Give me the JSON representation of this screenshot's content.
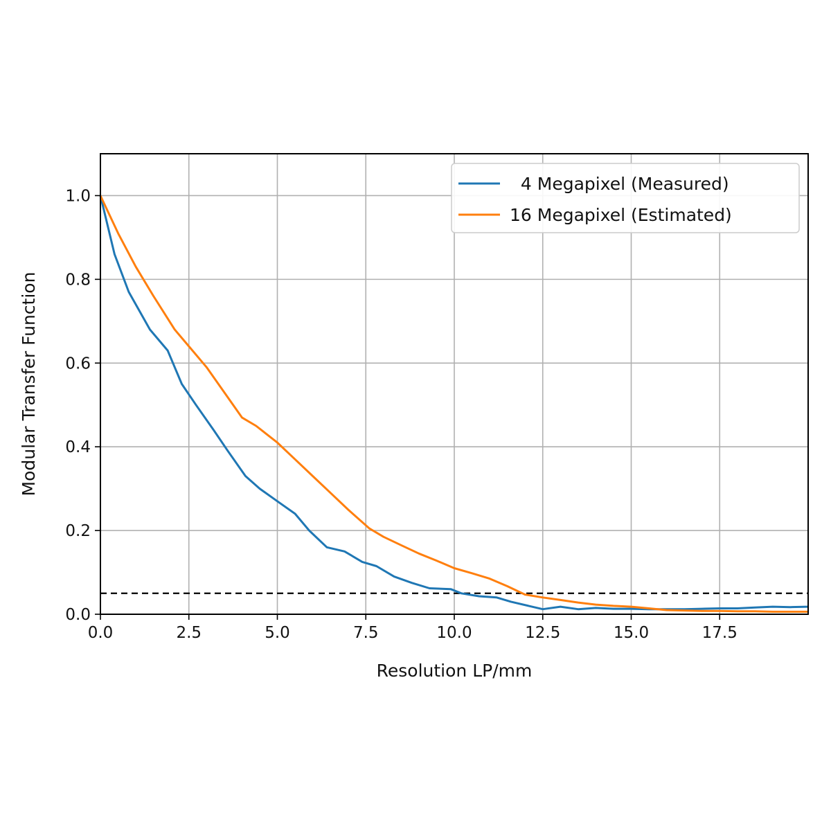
{
  "chart_data": {
    "type": "line",
    "title": "",
    "xlabel": "Resolution LP/mm",
    "ylabel": "Modular Transfer Function",
    "xlim": [
      0,
      20
    ],
    "ylim": [
      0,
      1.1
    ],
    "grid": true,
    "legend_position": "top-right",
    "x_ticks": [
      0,
      2.5,
      5.0,
      7.5,
      10.0,
      12.5,
      15.0,
      17.5
    ],
    "x_tick_labels": [
      "0.0",
      "2.5",
      "5.0",
      "7.5",
      "10.0",
      "12.5",
      "15.0",
      "17.5"
    ],
    "y_ticks": [
      0.0,
      0.2,
      0.4,
      0.6,
      0.8,
      1.0
    ],
    "y_tick_labels": [
      "0.0",
      "0.2",
      "0.4",
      "0.6",
      "0.8",
      "1.0"
    ],
    "reference_line": {
      "y": 0.05,
      "style": "dashed",
      "color": "#000000"
    },
    "series": [
      {
        "name": "  4 Megapixel (Measured)",
        "color": "#1f77b4",
        "x": [
          0,
          0.4,
          0.8,
          1.4,
          1.9,
          2.3,
          2.7,
          3.2,
          3.6,
          4.1,
          4.5,
          5.0,
          5.5,
          5.9,
          6.4,
          6.9,
          7.4,
          7.8,
          8.3,
          8.8,
          9.3,
          9.9,
          10.2,
          10.7,
          11.2,
          11.6,
          12.1,
          12.5,
          13.0,
          13.5,
          14.0,
          14.5,
          15.0,
          15.5,
          16.0,
          16.5,
          17.0,
          17.5,
          18.0,
          18.5,
          19.0,
          19.5,
          20.0
        ],
        "y": [
          1.0,
          0.86,
          0.77,
          0.68,
          0.63,
          0.55,
          0.5,
          0.44,
          0.39,
          0.33,
          0.3,
          0.27,
          0.24,
          0.2,
          0.16,
          0.15,
          0.125,
          0.115,
          0.09,
          0.075,
          0.062,
          0.06,
          0.05,
          0.043,
          0.04,
          0.03,
          0.02,
          0.012,
          0.018,
          0.012,
          0.015,
          0.013,
          0.013,
          0.012,
          0.012,
          0.012,
          0.013,
          0.014,
          0.014,
          0.016,
          0.018,
          0.017,
          0.018
        ]
      },
      {
        "name": "16 Megapixel (Estimated)",
        "color": "#ff7f0e",
        "x": [
          0,
          0.5,
          1.0,
          1.5,
          2.1,
          2.5,
          3.0,
          3.5,
          4.0,
          4.4,
          5.0,
          5.5,
          6.0,
          6.5,
          7.0,
          7.6,
          8.0,
          8.5,
          9.0,
          9.5,
          10.0,
          10.5,
          11.0,
          11.5,
          12.0,
          12.5,
          13.0,
          13.5,
          14.0,
          14.5,
          15.0,
          15.5,
          16.0,
          16.5,
          17.0,
          17.5,
          18.0,
          18.5,
          19.0,
          19.5,
          20.0
        ],
        "y": [
          1.0,
          0.91,
          0.83,
          0.76,
          0.68,
          0.64,
          0.59,
          0.53,
          0.47,
          0.45,
          0.41,
          0.37,
          0.33,
          0.29,
          0.25,
          0.205,
          0.185,
          0.165,
          0.145,
          0.128,
          0.11,
          0.098,
          0.085,
          0.067,
          0.047,
          0.04,
          0.034,
          0.028,
          0.023,
          0.02,
          0.018,
          0.014,
          0.01,
          0.009,
          0.008,
          0.008,
          0.007,
          0.007,
          0.006,
          0.006,
          0.006
        ]
      }
    ]
  }
}
